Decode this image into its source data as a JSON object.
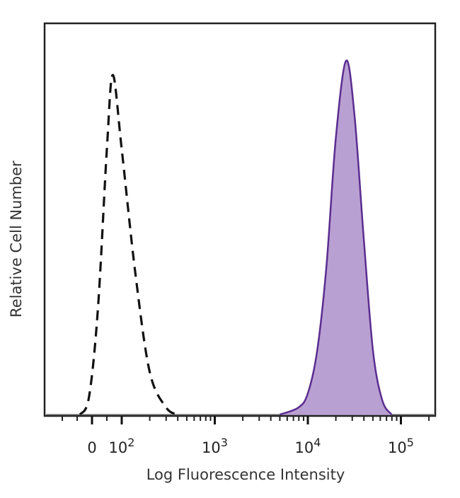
{
  "chart_data": {
    "type": "area",
    "title": "",
    "xlabel": "Log Fluorescence Intensity",
    "ylabel": "Relative Cell Number",
    "x_scale": "biexponential",
    "x_ticks": [
      {
        "value": 0,
        "base": "0",
        "exp": ""
      },
      {
        "value": 100,
        "base": "10",
        "exp": "2"
      },
      {
        "value": 1000,
        "base": "10",
        "exp": "3"
      },
      {
        "value": 10000,
        "base": "10",
        "exp": "4"
      },
      {
        "value": 100000,
        "base": "10",
        "exp": "5"
      }
    ],
    "xlim": [
      -150,
      250000
    ],
    "ylim": [
      0,
      111
    ],
    "grid": false,
    "legend": "none",
    "series": [
      {
        "style": "dashed-outline",
        "color": "#111111",
        "x": [
          -40,
          -10,
          20,
          50,
          70,
          100,
          140,
          200,
          300,
          400
        ],
        "y": [
          0,
          5,
          30,
          75,
          96,
          75,
          40,
          12,
          2,
          0
        ]
      },
      {
        "style": "filled",
        "color": "#5b2d90",
        "fill": "#b9a0d2",
        "x": [
          5012,
          7943,
          10000,
          12589,
          15849,
          19953,
          25704,
          31623,
          39811,
          50119,
          63096,
          79433
        ],
        "y": [
          0,
          2,
          6,
          18,
          42,
          78,
          100,
          85,
          50,
          18,
          4,
          0
        ]
      }
    ]
  }
}
